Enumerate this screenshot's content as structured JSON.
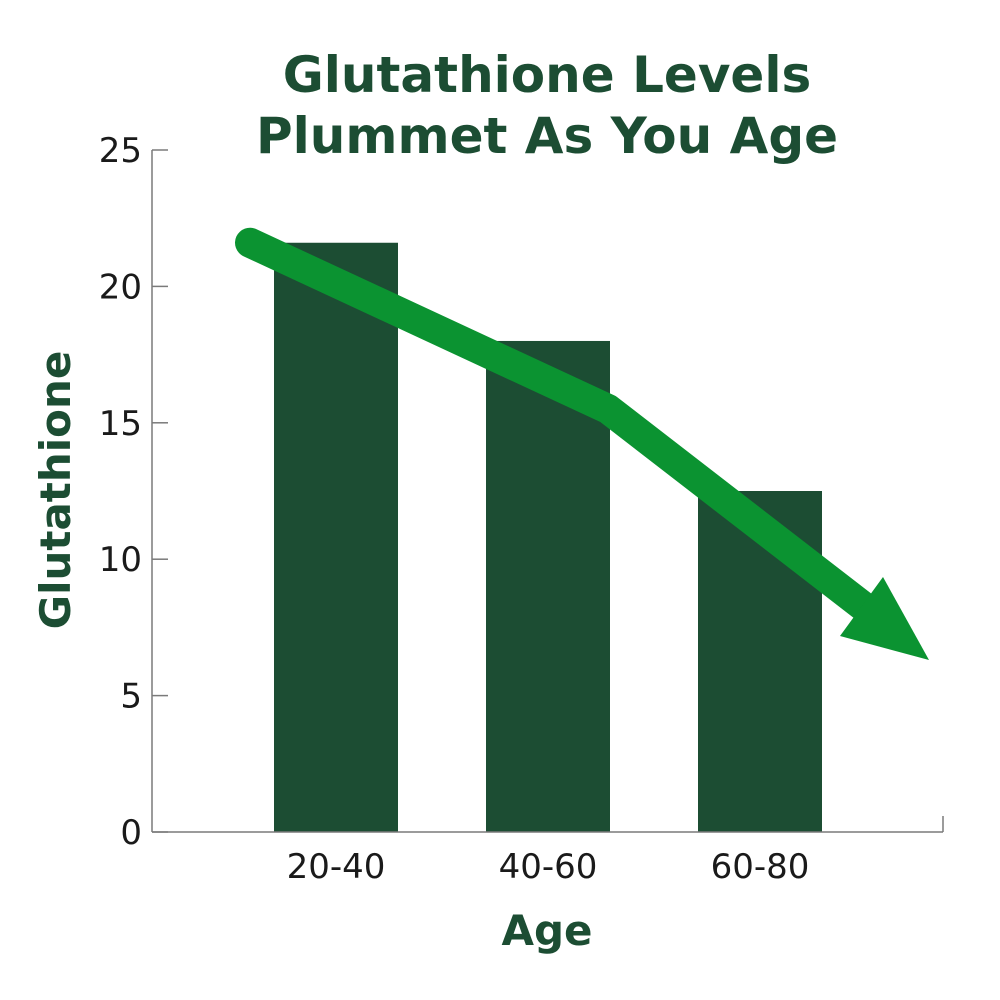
{
  "chart_data": {
    "type": "bar",
    "title_lines": [
      "Glutathione Levels",
      "Plummet As You Age"
    ],
    "xlabel": "Age",
    "ylabel": "Glutathione",
    "categories": [
      "20-40",
      "40-60",
      "60-80"
    ],
    "values": [
      21.6,
      18.0,
      12.5
    ],
    "ylim": [
      0,
      25
    ],
    "yticks": [
      0,
      5,
      10,
      15,
      20,
      25
    ],
    "ytick_labels": [
      "0",
      "5",
      "10",
      "15",
      "20",
      "25"
    ],
    "grid": false,
    "legend": "none",
    "annotation": "downward trend arrow",
    "colors": {
      "bar": "#1c4d33",
      "title": "#1c4d33",
      "arrow": "#0b9331",
      "axis": "#7a7a7a"
    }
  }
}
